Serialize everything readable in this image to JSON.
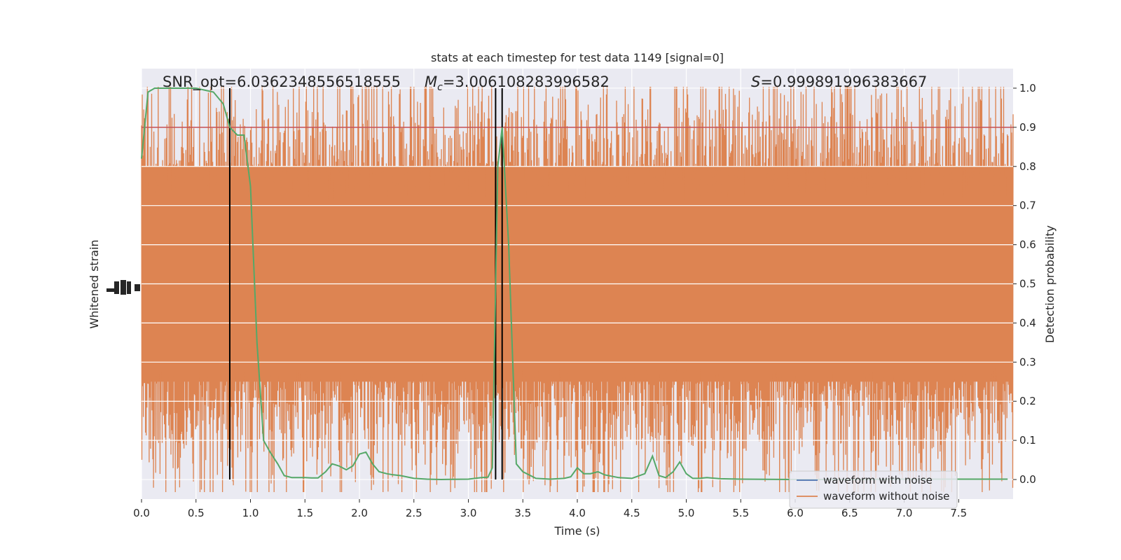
{
  "chart_data": {
    "type": "line",
    "title": "stats at each timestep for test data 1149 [signal=0]",
    "xlabel": "Time (s)",
    "ylabel_left": "Whitened strain",
    "ylabel_right": "Detection probability",
    "xlim": [
      0,
      8
    ],
    "ylim_right": [
      -0.05,
      1.05
    ],
    "x_ticks": [
      "0.0",
      "0.5",
      "1.0",
      "1.5",
      "2.0",
      "2.5",
      "3.0",
      "3.5",
      "4.0",
      "4.5",
      "5.0",
      "5.5",
      "6.0",
      "6.5",
      "7.0",
      "7.5"
    ],
    "y_right_ticks": [
      "0.0",
      "0.1",
      "0.2",
      "0.3",
      "0.4",
      "0.5",
      "0.6",
      "0.7",
      "0.8",
      "0.9",
      "1.0"
    ],
    "grid": true,
    "legend_position": "lower-right",
    "annotations": {
      "snr": "SNR_opt=6.0362348556518555",
      "mc_symbol": "M",
      "mc_sub": "c",
      "mc_value": "=3.006108283996582",
      "s_symbol": "S",
      "s_value": "=0.999891996383667"
    },
    "threshold": {
      "y": 0.9,
      "color": "#c44e52"
    },
    "vertical_markers": [
      0.81,
      3.25,
      3.31
    ],
    "series": [
      {
        "name": "waveform with noise",
        "color": "#4c72b0"
      },
      {
        "name": "waveform without noise",
        "color": "#dd8452"
      },
      {
        "color": "#55a868",
        "x": [
          0.0,
          0.06,
          0.12,
          0.18,
          0.3,
          0.5,
          0.66,
          0.75,
          0.81,
          0.88,
          0.94,
          1.0,
          1.06,
          1.12,
          1.18,
          1.25,
          1.31,
          1.38,
          1.44,
          1.5,
          1.56,
          1.62,
          1.69,
          1.75,
          1.81,
          1.88,
          1.94,
          2.0,
          2.06,
          2.12,
          2.18,
          2.25,
          2.31,
          2.38,
          2.5,
          2.62,
          2.75,
          3.0,
          3.12,
          3.18,
          3.22,
          3.27,
          3.31,
          3.37,
          3.44,
          3.5,
          3.62,
          3.75,
          3.88,
          3.94,
          4.0,
          4.06,
          4.12,
          4.19,
          4.25,
          4.38,
          4.5,
          4.62,
          4.69,
          4.75,
          4.81,
          4.88,
          4.94,
          5.0,
          5.06,
          5.12,
          5.19,
          5.31,
          5.5,
          6.0,
          6.5,
          7.0,
          7.5,
          7.95
        ],
        "values": [
          0.82,
          0.99,
          1.0,
          1.0,
          1.0,
          1.0,
          0.99,
          0.96,
          0.9,
          0.88,
          0.88,
          0.75,
          0.35,
          0.1,
          0.07,
          0.04,
          0.01,
          0.005,
          0.005,
          0.005,
          0.004,
          0.004,
          0.02,
          0.04,
          0.035,
          0.025,
          0.035,
          0.065,
          0.07,
          0.04,
          0.02,
          0.015,
          0.012,
          0.01,
          0.003,
          0.001,
          0.0,
          0.001,
          0.005,
          0.006,
          0.03,
          0.8,
          0.9,
          0.6,
          0.04,
          0.02,
          0.003,
          0.001,
          0.003,
          0.007,
          0.03,
          0.015,
          0.015,
          0.02,
          0.012,
          0.005,
          0.003,
          0.015,
          0.06,
          0.01,
          0.005,
          0.02,
          0.045,
          0.015,
          0.003,
          0.003,
          0.005,
          0.002,
          0.001,
          0.0,
          0.0,
          0.001,
          0.001,
          0.001
        ]
      }
    ]
  }
}
